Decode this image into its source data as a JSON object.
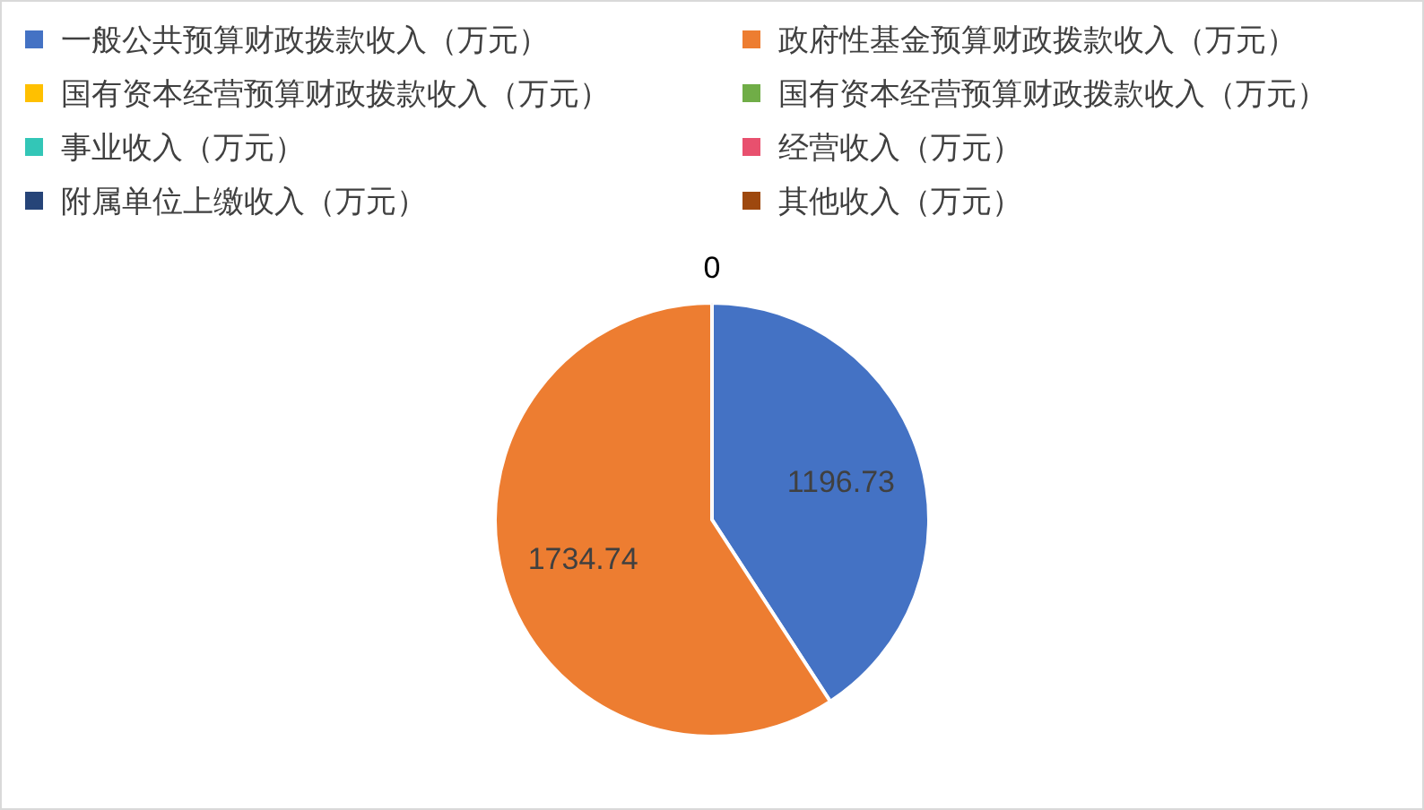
{
  "chart_data": {
    "type": "pie",
    "categories": [
      "一般公共预算财政拨款收入（万元）",
      "政府性基金预算财政拨款收入（万元）",
      "国有资本经营预算财政拨款收入（万元）",
      "国有资本经营预算财政拨款收入（万元）",
      "事业收入（万元）",
      "经营收入（万元）",
      "附属单位上缴收入（万元）",
      "其他收入（万元）"
    ],
    "values": [
      1196.73,
      1734.74,
      0,
      0,
      0,
      0,
      0,
      0
    ],
    "value_labels": [
      "1196.73",
      "1734.74",
      "0",
      null,
      null,
      null,
      null,
      null
    ],
    "colors": [
      "#4472c4",
      "#ed7d31",
      "#ffc000",
      "#70ad47",
      "#33c6b7",
      "#e8506e",
      "#264478",
      "#9e480e"
    ],
    "legend": "top"
  }
}
